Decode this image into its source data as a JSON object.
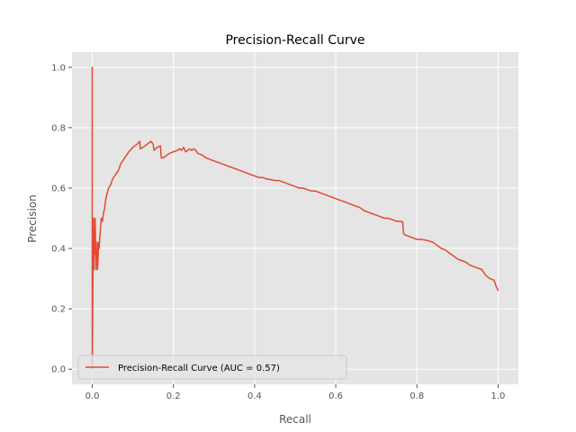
{
  "chart_data": {
    "type": "line",
    "title": "Precision-Recall Curve",
    "xlabel": "Recall",
    "ylabel": "Precision",
    "xlim": [
      -0.05,
      1.05
    ],
    "ylim": [
      -0.05,
      1.05
    ],
    "xticks": [
      0.0,
      0.2,
      0.4,
      0.6,
      0.8,
      1.0
    ],
    "yticks": [
      0.0,
      0.2,
      0.4,
      0.6,
      0.8,
      1.0
    ],
    "xtick_labels": [
      "0.0",
      "0.2",
      "0.4",
      "0.6",
      "0.8",
      "1.0"
    ],
    "ytick_labels": [
      "0.0",
      "0.2",
      "0.4",
      "0.6",
      "0.8",
      "1.0"
    ],
    "grid": true,
    "legend_position": "lower-left",
    "colors": {
      "line": "#e24a33",
      "background": "#e5e5e5",
      "grid": "#ffffff",
      "text": "#555555"
    },
    "series": [
      {
        "name": "Precision-Recall Curve (AUC = 0.57)",
        "x": [
          0.0,
          0.0,
          0.0,
          0.001,
          0.002,
          0.003,
          0.004,
          0.005,
          0.006,
          0.007,
          0.008,
          0.009,
          0.01,
          0.011,
          0.012,
          0.013,
          0.014,
          0.015,
          0.016,
          0.017,
          0.018,
          0.02,
          0.022,
          0.025,
          0.028,
          0.03,
          0.033,
          0.036,
          0.04,
          0.045,
          0.05,
          0.055,
          0.06,
          0.065,
          0.07,
          0.08,
          0.09,
          0.1,
          0.11,
          0.117,
          0.118,
          0.125,
          0.13,
          0.14,
          0.145,
          0.15,
          0.152,
          0.16,
          0.168,
          0.17,
          0.175,
          0.18,
          0.19,
          0.2,
          0.21,
          0.215,
          0.22,
          0.225,
          0.23,
          0.24,
          0.245,
          0.25,
          0.255,
          0.26,
          0.27,
          0.275,
          0.28,
          0.3,
          0.32,
          0.34,
          0.36,
          0.38,
          0.4,
          0.41,
          0.42,
          0.43,
          0.44,
          0.45,
          0.46,
          0.47,
          0.48,
          0.49,
          0.5,
          0.51,
          0.52,
          0.53,
          0.54,
          0.55,
          0.56,
          0.57,
          0.58,
          0.59,
          0.6,
          0.61,
          0.62,
          0.63,
          0.64,
          0.65,
          0.66,
          0.67,
          0.68,
          0.69,
          0.7,
          0.71,
          0.72,
          0.73,
          0.74,
          0.75,
          0.76,
          0.765,
          0.767,
          0.77,
          0.78,
          0.79,
          0.8,
          0.81,
          0.82,
          0.83,
          0.84,
          0.85,
          0.86,
          0.87,
          0.88,
          0.89,
          0.9,
          0.91,
          0.92,
          0.93,
          0.94,
          0.95,
          0.96,
          0.965,
          0.97,
          0.98,
          0.99,
          0.995,
          1.0
        ],
        "y": [
          0.05,
          1.0,
          0.0,
          0.2,
          0.35,
          0.5,
          0.33,
          0.45,
          0.38,
          0.5,
          0.42,
          0.33,
          0.38,
          0.35,
          0.42,
          0.33,
          0.36,
          0.4,
          0.42,
          0.4,
          0.43,
          0.46,
          0.5,
          0.49,
          0.52,
          0.53,
          0.56,
          0.58,
          0.6,
          0.61,
          0.63,
          0.64,
          0.65,
          0.66,
          0.68,
          0.7,
          0.72,
          0.735,
          0.745,
          0.755,
          0.73,
          0.735,
          0.74,
          0.75,
          0.755,
          0.745,
          0.725,
          0.735,
          0.74,
          0.7,
          0.7,
          0.705,
          0.715,
          0.72,
          0.725,
          0.73,
          0.725,
          0.735,
          0.72,
          0.73,
          0.725,
          0.73,
          0.725,
          0.715,
          0.71,
          0.705,
          0.7,
          0.69,
          0.68,
          0.67,
          0.66,
          0.65,
          0.64,
          0.635,
          0.635,
          0.63,
          0.628,
          0.625,
          0.625,
          0.62,
          0.615,
          0.61,
          0.605,
          0.6,
          0.6,
          0.595,
          0.59,
          0.59,
          0.585,
          0.58,
          0.575,
          0.57,
          0.565,
          0.56,
          0.555,
          0.55,
          0.545,
          0.54,
          0.535,
          0.525,
          0.52,
          0.515,
          0.51,
          0.505,
          0.5,
          0.5,
          0.495,
          0.49,
          0.49,
          0.488,
          0.45,
          0.445,
          0.44,
          0.435,
          0.43,
          0.43,
          0.428,
          0.425,
          0.42,
          0.41,
          0.4,
          0.395,
          0.385,
          0.375,
          0.365,
          0.36,
          0.355,
          0.345,
          0.34,
          0.335,
          0.33,
          0.32,
          0.31,
          0.3,
          0.295,
          0.275,
          0.26
        ]
      }
    ]
  }
}
